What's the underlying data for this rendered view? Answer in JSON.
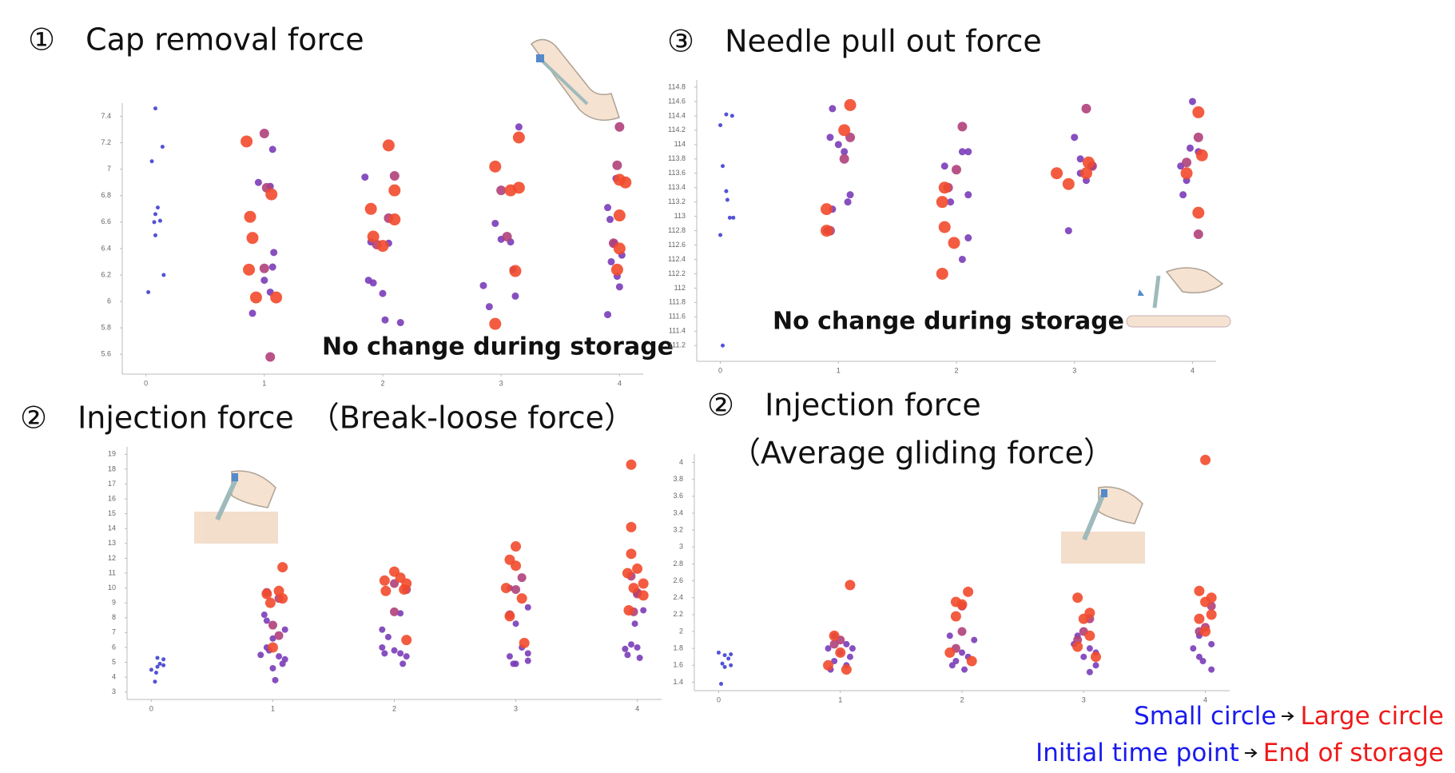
{
  "chart_data": [
    {
      "type": "scatter",
      "title": "①　Cap removal force",
      "annotation": "No change during storage",
      "xlim": [
        -0.2,
        4.2
      ],
      "xticks": [
        0,
        1,
        2,
        3,
        4
      ],
      "ylim": [
        5.45,
        7.5
      ],
      "yticks": [
        5.6,
        5.8,
        6,
        6.2,
        6.4,
        6.6,
        6.8,
        7,
        7.2,
        7.4
      ],
      "series": [
        {
          "color": "#4040d0",
          "size": 2.5,
          "x": [
            0.08,
            0.14,
            0.05,
            0.1,
            0.08,
            0.12,
            0.07,
            0.08,
            0.15,
            0.02
          ],
          "values": [
            7.46,
            7.17,
            7.06,
            6.71,
            6.66,
            6.61,
            6.6,
            6.5,
            6.2,
            6.07
          ]
        },
        {
          "color": "#7a3cb8",
          "size": 4.5,
          "x": [
            0.95,
            1.05,
            1.0,
            1.07,
            1.08,
            0.9,
            1.05,
            1.07,
            1.85,
            1.9,
            1.88,
            1.92,
            2.05,
            2.0,
            2.02,
            2.15,
            2.95,
            2.85,
            2.9,
            3.08,
            3.12,
            3.0,
            3.1,
            3.15,
            3.9,
            3.92,
            3.95,
            3.93,
            3.98,
            4.0,
            3.9,
            3.97,
            4.02
          ],
          "values": [
            6.9,
            6.87,
            6.16,
            6.26,
            6.37,
            5.91,
            6.07,
            7.15,
            6.94,
            6.45,
            6.16,
            6.14,
            6.44,
            6.06,
            5.86,
            5.84,
            6.59,
            6.12,
            5.96,
            6.45,
            6.04,
            6.47,
            6.24,
            7.32,
            6.71,
            6.62,
            6.44,
            6.3,
            6.19,
            6.11,
            5.9,
            6.93,
            6.35
          ]
        },
        {
          "color": "#b0407a",
          "size": 6,
          "x": [
            1.0,
            1.02,
            1.0,
            1.05,
            2.1,
            2.05,
            1.95,
            3.05,
            3.0,
            4.0,
            3.98,
            3.95
          ],
          "values": [
            7.27,
            6.86,
            6.25,
            5.58,
            6.95,
            6.63,
            6.43,
            6.49,
            6.84,
            7.32,
            7.03,
            6.44
          ]
        },
        {
          "color": "#f24a2c",
          "size": 7.5,
          "x": [
            0.85,
            0.88,
            0.9,
            0.87,
            0.93,
            1.06,
            1.1,
            1.9,
            1.92,
            2.05,
            2.1,
            2.1,
            2.0,
            2.95,
            3.08,
            3.15,
            3.15,
            3.12,
            2.95,
            4.05,
            4.0,
            4.0,
            4.0,
            3.98
          ],
          "values": [
            7.21,
            6.64,
            6.48,
            6.24,
            6.03,
            6.81,
            6.03,
            6.7,
            6.49,
            7.18,
            6.84,
            6.62,
            6.42,
            7.02,
            6.84,
            6.86,
            7.24,
            6.23,
            5.83,
            6.9,
            6.92,
            6.65,
            6.4,
            6.24
          ]
        }
      ]
    },
    {
      "type": "scatter",
      "title": "③　Needle pull out force",
      "annotation": "No change during storage",
      "xlim": [
        -0.2,
        4.2
      ],
      "xticks": [
        0,
        1,
        2,
        3,
        4
      ],
      "ylim": [
        110.98,
        114.9
      ],
      "yticks": [
        111.2,
        111.4,
        111.6,
        111.8,
        112,
        112.2,
        112.4,
        112.6,
        112.8,
        113,
        113.2,
        113.4,
        113.6,
        113.8,
        114,
        114.2,
        114.4,
        114.6,
        114.8
      ],
      "series": [
        {
          "color": "#4040d0",
          "size": 2.5,
          "x": [
            0.05,
            0.1,
            0.0,
            0.02,
            0.05,
            0.06,
            0.08,
            0.11,
            0.0,
            0.02
          ],
          "values": [
            114.42,
            114.4,
            114.27,
            113.7,
            113.35,
            113.23,
            112.98,
            112.98,
            112.74,
            111.2
          ]
        },
        {
          "color": "#7a3cb8",
          "size": 4.5,
          "x": [
            0.95,
            0.93,
            1.0,
            1.05,
            1.1,
            1.08,
            0.95,
            0.9,
            1.9,
            2.05,
            1.95,
            2.1,
            2.1,
            2.05,
            2.1,
            3.05,
            3.1,
            3.05,
            3.15,
            2.95,
            3.0,
            4.0,
            3.9,
            3.95,
            3.92,
            4.05,
            3.98
          ],
          "values": [
            114.5,
            114.1,
            114.0,
            113.9,
            113.3,
            113.2,
            113.1,
            112.8,
            113.7,
            113.9,
            113.2,
            113.3,
            112.7,
            112.4,
            113.9,
            113.8,
            113.5,
            113.6,
            113.7,
            112.8,
            114.1,
            114.6,
            113.7,
            113.5,
            113.3,
            113.9,
            113.95
          ]
        },
        {
          "color": "#b0407a",
          "size": 6,
          "x": [
            1.05,
            0.93,
            1.1,
            2.05,
            2.0,
            1.93,
            3.1,
            3.15,
            4.05,
            3.95,
            4.05
          ],
          "values": [
            113.8,
            112.8,
            114.1,
            114.25,
            113.65,
            113.4,
            114.5,
            113.7,
            114.1,
            113.75,
            112.75
          ]
        },
        {
          "color": "#f24a2c",
          "size": 7.5,
          "x": [
            1.1,
            1.05,
            0.9,
            0.9,
            1.9,
            1.88,
            1.9,
            1.98,
            1.88,
            2.85,
            2.95,
            3.12,
            3.1,
            4.05,
            3.95,
            4.08,
            4.05
          ],
          "values": [
            114.55,
            114.2,
            113.1,
            112.8,
            113.4,
            113.2,
            112.85,
            112.63,
            112.2,
            113.6,
            113.45,
            113.75,
            113.6,
            114.45,
            113.6,
            113.85,
            113.05
          ]
        }
      ]
    },
    {
      "type": "scatter",
      "title": "②　Injection force　（Break-loose force）",
      "xlim": [
        -0.2,
        4.2
      ],
      "xticks": [
        0,
        1,
        2,
        3,
        4
      ],
      "ylim": [
        2.5,
        19.5
      ],
      "yticks": [
        3,
        4,
        5,
        6,
        7,
        8,
        9,
        10,
        11,
        12,
        13,
        14,
        15,
        16,
        17,
        18,
        19
      ],
      "series": [
        {
          "color": "#4040d0",
          "size": 2.5,
          "x": [
            0.05,
            0.1,
            0.07,
            0.0,
            0.04,
            0.05,
            0.1,
            0.03
          ],
          "values": [
            5.3,
            5.2,
            4.9,
            4.5,
            4.3,
            4.7,
            4.8,
            3.7
          ]
        },
        {
          "color": "#7a3cb8",
          "size": 4,
          "x": [
            0.93,
            0.95,
            1.1,
            1.0,
            0.95,
            1.05,
            0.9,
            1.1,
            1.0,
            1.02,
            1.08,
            0.97,
            1.9,
            2.05,
            1.95,
            1.9,
            2.0,
            2.05,
            2.1,
            2.07,
            1.92,
            2.95,
            3.1,
            3.0,
            3.05,
            3.1,
            2.95,
            3.0,
            3.1,
            2.98,
            3.95,
            4.0,
            3.92,
            4.02,
            3.98,
            4.05,
            3.9
          ],
          "values": [
            8.2,
            7.8,
            7.2,
            6.6,
            6.0,
            5.4,
            5.5,
            5.2,
            4.6,
            3.8,
            4.9,
            5.8,
            7.2,
            8.3,
            6.7,
            6.0,
            5.8,
            5.6,
            5.4,
            4.9,
            5.6,
            10.0,
            8.7,
            7.6,
            6.0,
            5.6,
            5.4,
            4.9,
            5.1,
            4.9,
            6.2,
            6.0,
            5.5,
            5.3,
            7.6,
            8.5,
            5.9
          ]
        },
        {
          "color": "#b0407a",
          "size": 5.5,
          "x": [
            1.0,
            1.05,
            1.05,
            0.95,
            2.0,
            2.0,
            2.1,
            3.05,
            2.95,
            3.0,
            3.95,
            4.0,
            3.97,
            4.0
          ],
          "values": [
            7.5,
            6.8,
            9.3,
            9.7,
            10.3,
            8.4,
            9.9,
            10.7,
            8.2,
            9.9,
            10.8,
            9.7,
            8.4,
            9.6
          ]
        },
        {
          "color": "#f24a2c",
          "size": 6.5,
          "x": [
            0.95,
            1.05,
            1.08,
            0.98,
            1.08,
            1.0,
            2.0,
            1.92,
            2.05,
            2.1,
            1.93,
            2.08,
            2.1,
            3.0,
            2.95,
            3.0,
            2.92,
            3.05,
            2.95,
            3.07,
            3.95,
            3.95,
            3.95,
            4.0,
            3.92,
            4.05,
            3.97,
            4.05,
            3.93
          ],
          "values": [
            9.6,
            9.8,
            9.3,
            9.0,
            11.4,
            6.0,
            11.1,
            10.5,
            10.7,
            10.3,
            9.8,
            9.9,
            6.5,
            12.8,
            11.9,
            11.5,
            10.0,
            9.3,
            8.1,
            6.3,
            18.3,
            14.1,
            12.3,
            11.3,
            11.0,
            10.3,
            10.0,
            9.5,
            8.5
          ]
        }
      ]
    },
    {
      "type": "scatter",
      "title": "②　Injection force",
      "subtitle": "（Average gliding force）",
      "xlim": [
        -0.2,
        4.2
      ],
      "xticks": [
        0,
        1,
        2,
        3,
        4
      ],
      "ylim": [
        1.3,
        4.1
      ],
      "yticks": [
        1.4,
        1.6,
        1.8,
        2,
        2.2,
        2.4,
        2.6,
        2.8,
        3,
        3.2,
        3.4,
        3.6,
        3.8,
        4
      ],
      "series": [
        {
          "color": "#4040d0",
          "size": 2.5,
          "x": [
            0.0,
            0.05,
            0.1,
            0.08,
            0.03,
            0.1,
            0.05,
            0.02
          ],
          "values": [
            1.75,
            1.72,
            1.73,
            1.68,
            1.62,
            1.6,
            1.58,
            1.38
          ]
        },
        {
          "color": "#7a3cb8",
          "size": 4,
          "x": [
            0.95,
            1.05,
            0.9,
            1.0,
            1.08,
            0.95,
            1.05,
            0.92,
            1.1,
            1.9,
            2.0,
            2.05,
            1.95,
            2.1,
            1.92,
            2.02,
            2.95,
            3.05,
            3.1,
            3.0,
            3.1,
            3.05,
            2.92,
            3.95,
            4.05,
            3.95,
            3.98,
            4.05,
            3.9
          ],
          "values": [
            1.95,
            1.85,
            1.8,
            1.75,
            1.7,
            1.65,
            1.6,
            1.55,
            1.8,
            1.95,
            1.75,
            1.7,
            1.65,
            1.9,
            1.6,
            1.55,
            1.95,
            1.8,
            1.75,
            1.7,
            1.6,
            1.52,
            1.85,
            1.95,
            1.85,
            1.7,
            1.65,
            1.55,
            1.8
          ]
        },
        {
          "color": "#b0407a",
          "size": 5.5,
          "x": [
            0.95,
            1.0,
            2.0,
            1.95,
            2.0,
            3.0,
            2.95,
            3.05,
            4.0,
            3.95,
            4.05
          ],
          "values": [
            1.85,
            1.9,
            2.0,
            1.8,
            2.3,
            2.0,
            1.9,
            2.15,
            2.05,
            2.0,
            2.3
          ]
        },
        {
          "color": "#f24a2c",
          "size": 6.5,
          "x": [
            1.08,
            0.95,
            1.0,
            1.05,
            0.9,
            2.05,
            1.95,
            2.0,
            1.95,
            2.08,
            1.9,
            2.95,
            3.05,
            3.0,
            3.05,
            2.95,
            3.1,
            4.0,
            3.95,
            4.05,
            4.0,
            4.05,
            3.95,
            4.0
          ],
          "values": [
            2.55,
            1.95,
            1.75,
            1.55,
            1.6,
            2.47,
            2.35,
            2.32,
            2.18,
            1.65,
            1.75,
            2.4,
            2.22,
            2.15,
            1.95,
            1.82,
            1.7,
            4.03,
            2.48,
            2.4,
            2.35,
            2.2,
            2.15,
            2.0
          ]
        }
      ]
    }
  ],
  "note": {
    "from_size": "Small circle",
    "to_size": "Large circle",
    "from_time": "Initial time point",
    "to_time": "End of storage",
    "from_color": "#1a1aee",
    "to_color": "#ee1a1a"
  }
}
